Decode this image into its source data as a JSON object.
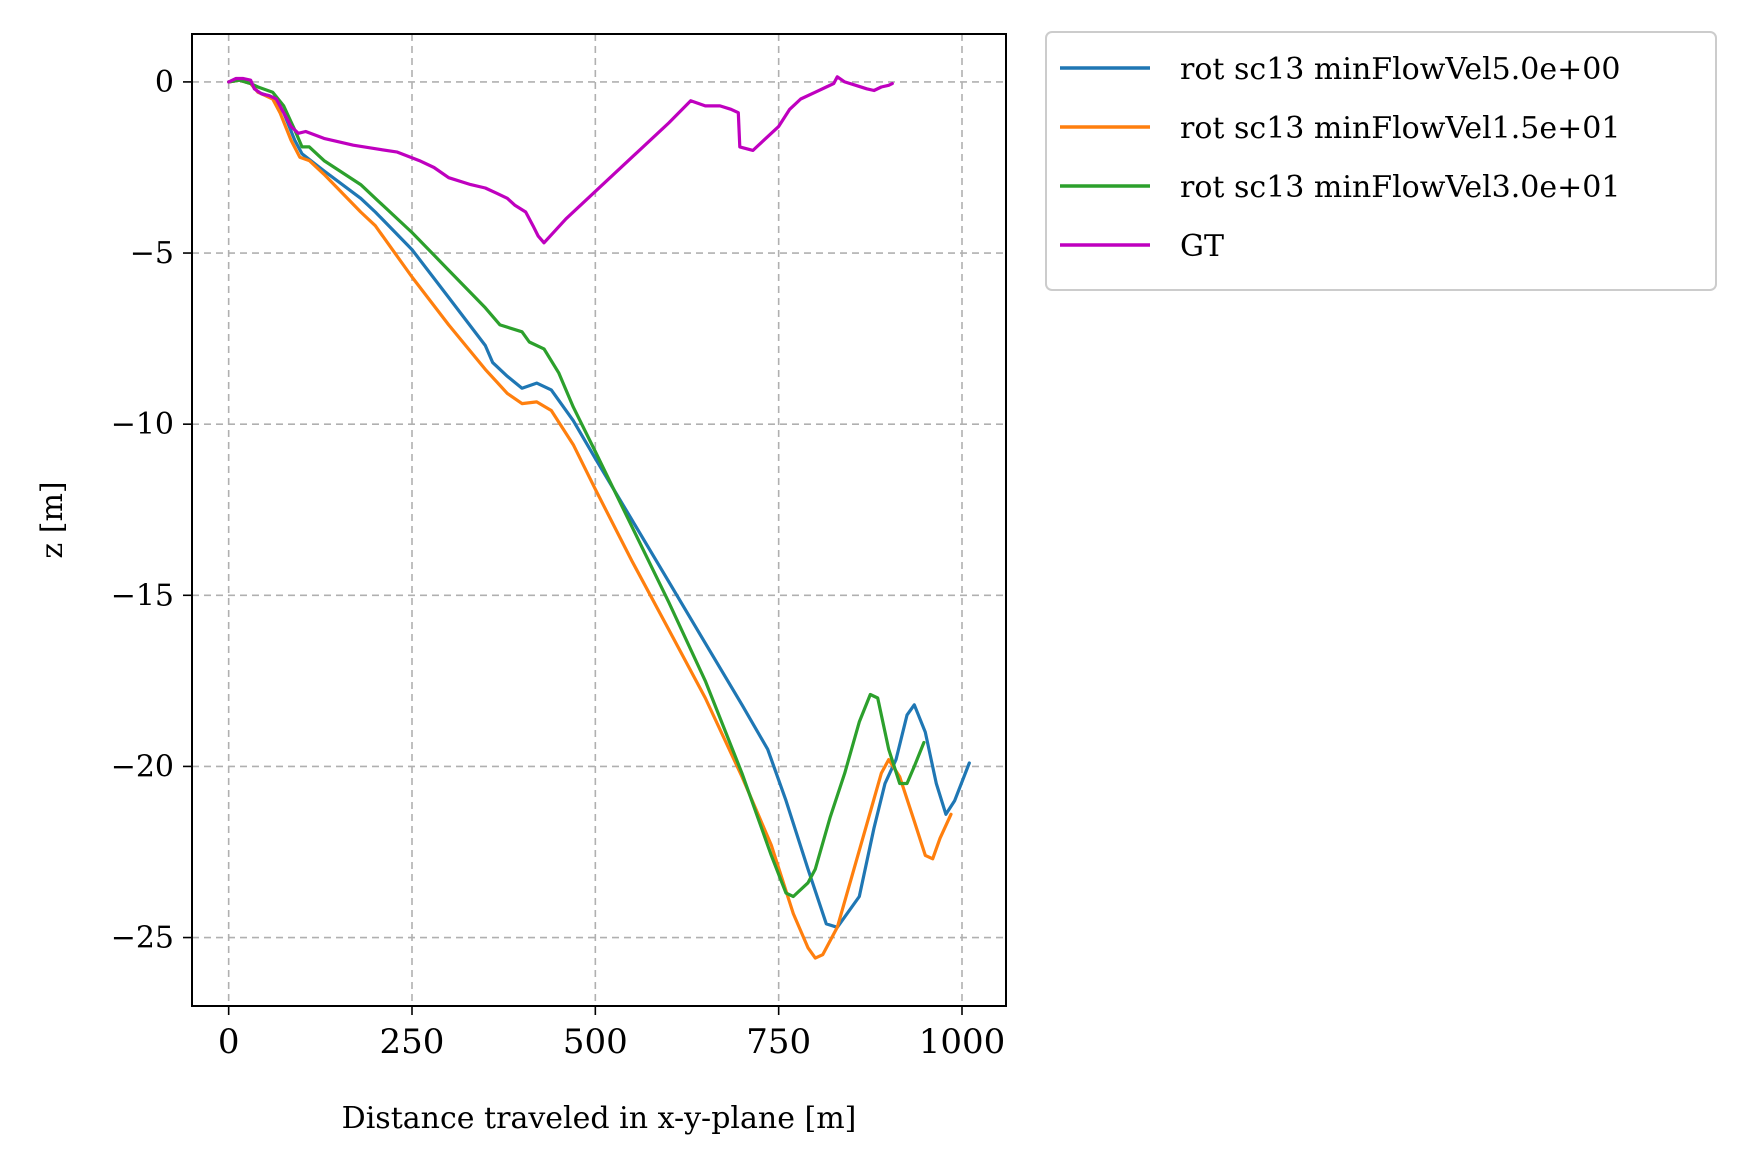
{
  "chart_data": {
    "type": "line",
    "title": "",
    "xlabel": "Distance traveled in x-y-plane [m]",
    "ylabel": "z [m]",
    "xlim": [
      -50,
      1060
    ],
    "ylim": [
      -27,
      1.4
    ],
    "grid": true,
    "legend_position": "outside-top-right",
    "xticks": [
      0,
      250,
      500,
      750,
      1000
    ],
    "xtick_labels": [
      "0",
      "250",
      "500",
      "750",
      "1000"
    ],
    "yticks": [
      0,
      -5,
      -10,
      -15,
      -20,
      -25
    ],
    "ytick_labels": [
      "0",
      "−5",
      "−10",
      "−15",
      "−20",
      "−25"
    ],
    "series": [
      {
        "name": "rot sc13 minFlowVel5.0e+00",
        "color": "#1f77b4",
        "points": [
          [
            0,
            0
          ],
          [
            15,
            0.05
          ],
          [
            30,
            -0.05
          ],
          [
            40,
            -0.3
          ],
          [
            60,
            -0.45
          ],
          [
            75,
            -0.9
          ],
          [
            90,
            -1.7
          ],
          [
            100,
            -2.1
          ],
          [
            130,
            -2.6
          ],
          [
            180,
            -3.4
          ],
          [
            200,
            -3.8
          ],
          [
            250,
            -4.9
          ],
          [
            300,
            -6.3
          ],
          [
            350,
            -7.7
          ],
          [
            360,
            -8.2
          ],
          [
            380,
            -8.6
          ],
          [
            400,
            -8.95
          ],
          [
            420,
            -8.8
          ],
          [
            440,
            -9.0
          ],
          [
            470,
            -9.9
          ],
          [
            500,
            -11.0
          ],
          [
            550,
            -12.8
          ],
          [
            600,
            -14.6
          ],
          [
            650,
            -16.4
          ],
          [
            700,
            -18.2
          ],
          [
            735,
            -19.5
          ],
          [
            760,
            -21.0
          ],
          [
            790,
            -23.0
          ],
          [
            815,
            -24.6
          ],
          [
            830,
            -24.7
          ],
          [
            860,
            -23.8
          ],
          [
            880,
            -21.8
          ],
          [
            895,
            -20.5
          ],
          [
            910,
            -19.8
          ],
          [
            925,
            -18.5
          ],
          [
            935,
            -18.2
          ],
          [
            950,
            -19.0
          ],
          [
            965,
            -20.5
          ],
          [
            978,
            -21.4
          ],
          [
            990,
            -21.0
          ],
          [
            1010,
            -19.9
          ]
        ]
      },
      {
        "name": "rot sc13 minFlowVel1.5e+01",
        "color": "#ff7f0e",
        "points": [
          [
            0,
            0
          ],
          [
            15,
            0.05
          ],
          [
            30,
            -0.05
          ],
          [
            40,
            -0.3
          ],
          [
            60,
            -0.5
          ],
          [
            70,
            -0.9
          ],
          [
            85,
            -1.7
          ],
          [
            97,
            -2.2
          ],
          [
            110,
            -2.3
          ],
          [
            130,
            -2.7
          ],
          [
            180,
            -3.8
          ],
          [
            200,
            -4.2
          ],
          [
            250,
            -5.7
          ],
          [
            300,
            -7.1
          ],
          [
            350,
            -8.4
          ],
          [
            380,
            -9.1
          ],
          [
            400,
            -9.4
          ],
          [
            420,
            -9.35
          ],
          [
            440,
            -9.6
          ],
          [
            470,
            -10.6
          ],
          [
            500,
            -11.9
          ],
          [
            550,
            -14.0
          ],
          [
            600,
            -16.0
          ],
          [
            650,
            -18.0
          ],
          [
            700,
            -20.3
          ],
          [
            740,
            -22.3
          ],
          [
            770,
            -24.3
          ],
          [
            790,
            -25.3
          ],
          [
            800,
            -25.6
          ],
          [
            810,
            -25.5
          ],
          [
            830,
            -24.7
          ],
          [
            850,
            -23.2
          ],
          [
            870,
            -21.7
          ],
          [
            890,
            -20.2
          ],
          [
            900,
            -19.8
          ],
          [
            915,
            -20.3
          ],
          [
            935,
            -21.6
          ],
          [
            950,
            -22.6
          ],
          [
            960,
            -22.7
          ],
          [
            970,
            -22.1
          ],
          [
            985,
            -21.4
          ]
        ]
      },
      {
        "name": "rot sc13 minFlowVel3.0e+01",
        "color": "#2ca02c",
        "points": [
          [
            0,
            0
          ],
          [
            15,
            0.05
          ],
          [
            30,
            -0.05
          ],
          [
            40,
            -0.15
          ],
          [
            60,
            -0.3
          ],
          [
            75,
            -0.7
          ],
          [
            90,
            -1.4
          ],
          [
            100,
            -1.9
          ],
          [
            110,
            -1.9
          ],
          [
            130,
            -2.3
          ],
          [
            180,
            -3.0
          ],
          [
            200,
            -3.4
          ],
          [
            250,
            -4.4
          ],
          [
            300,
            -5.5
          ],
          [
            350,
            -6.6
          ],
          [
            370,
            -7.1
          ],
          [
            400,
            -7.3
          ],
          [
            410,
            -7.6
          ],
          [
            430,
            -7.8
          ],
          [
            450,
            -8.5
          ],
          [
            470,
            -9.5
          ],
          [
            500,
            -10.8
          ],
          [
            550,
            -13.0
          ],
          [
            600,
            -15.2
          ],
          [
            650,
            -17.5
          ],
          [
            700,
            -20.2
          ],
          [
            740,
            -22.6
          ],
          [
            760,
            -23.7
          ],
          [
            770,
            -23.8
          ],
          [
            790,
            -23.4
          ],
          [
            800,
            -23.0
          ],
          [
            820,
            -21.5
          ],
          [
            840,
            -20.2
          ],
          [
            860,
            -18.7
          ],
          [
            875,
            -17.9
          ],
          [
            885,
            -18.0
          ],
          [
            900,
            -19.5
          ],
          [
            915,
            -20.5
          ],
          [
            925,
            -20.5
          ],
          [
            935,
            -20.0
          ],
          [
            948,
            -19.3
          ]
        ]
      },
      {
        "name": "GT",
        "color": "#bf00bf",
        "points": [
          [
            0,
            0
          ],
          [
            10,
            0.1
          ],
          [
            20,
            0.1
          ],
          [
            30,
            0.05
          ],
          [
            35,
            -0.2
          ],
          [
            45,
            -0.35
          ],
          [
            55,
            -0.4
          ],
          [
            65,
            -0.5
          ],
          [
            75,
            -0.9
          ],
          [
            85,
            -1.3
          ],
          [
            95,
            -1.5
          ],
          [
            105,
            -1.45
          ],
          [
            130,
            -1.65
          ],
          [
            150,
            -1.75
          ],
          [
            170,
            -1.85
          ],
          [
            200,
            -1.95
          ],
          [
            230,
            -2.05
          ],
          [
            260,
            -2.3
          ],
          [
            280,
            -2.5
          ],
          [
            300,
            -2.8
          ],
          [
            330,
            -3.0
          ],
          [
            350,
            -3.1
          ],
          [
            365,
            -3.25
          ],
          [
            380,
            -3.4
          ],
          [
            390,
            -3.6
          ],
          [
            405,
            -3.8
          ],
          [
            415,
            -4.2
          ],
          [
            422,
            -4.5
          ],
          [
            430,
            -4.7
          ],
          [
            460,
            -4.0
          ],
          [
            500,
            -3.2
          ],
          [
            550,
            -2.2
          ],
          [
            600,
            -1.2
          ],
          [
            630,
            -0.55
          ],
          [
            650,
            -0.7
          ],
          [
            670,
            -0.7
          ],
          [
            685,
            -0.8
          ],
          [
            695,
            -0.9
          ],
          [
            697,
            -1.9
          ],
          [
            715,
            -2.0
          ],
          [
            720,
            -1.9
          ],
          [
            730,
            -1.7
          ],
          [
            750,
            -1.3
          ],
          [
            765,
            -0.8
          ],
          [
            780,
            -0.5
          ],
          [
            800,
            -0.3
          ],
          [
            815,
            -0.15
          ],
          [
            825,
            -0.05
          ],
          [
            830,
            0.15
          ],
          [
            840,
            0.0
          ],
          [
            855,
            -0.1
          ],
          [
            870,
            -0.2
          ],
          [
            880,
            -0.25
          ],
          [
            890,
            -0.15
          ],
          [
            900,
            -0.1
          ],
          [
            905,
            -0.05
          ]
        ]
      }
    ]
  }
}
